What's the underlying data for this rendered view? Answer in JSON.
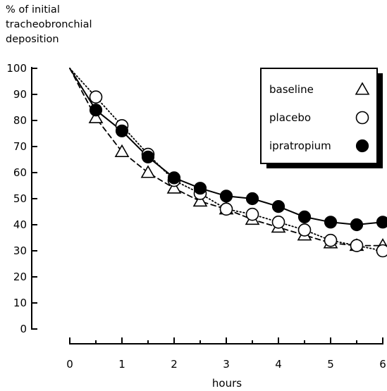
{
  "chart_data": {
    "type": "line",
    "title": "",
    "ylabel": "% of initial\ntracheobronchial\ndeposition",
    "xlabel": "hours",
    "xlim": [
      0,
      6
    ],
    "ylim": [
      0,
      100
    ],
    "xticks": [
      "0",
      "1",
      "2",
      "3",
      "4",
      "5",
      "6"
    ],
    "yticks": [
      "0",
      "10",
      "20",
      "30",
      "40",
      "50",
      "60",
      "70",
      "80",
      "90",
      "100"
    ],
    "grid": false,
    "legend_position": "top-right",
    "series": [
      {
        "name": "baseline",
        "marker": "open-triangle",
        "line_style": "dashed",
        "x": [
          0,
          0.5,
          1,
          1.5,
          2,
          2.5,
          3,
          3.5,
          4,
          4.5,
          5,
          5.5,
          6
        ],
        "y": [
          100,
          81,
          68,
          60,
          54,
          49,
          46,
          42,
          39,
          36,
          33,
          32,
          32
        ]
      },
      {
        "name": "placebo",
        "marker": "open-circle",
        "line_style": "dotted",
        "x": [
          0,
          0.5,
          1,
          1.5,
          2,
          2.5,
          3,
          3.5,
          4,
          4.5,
          5,
          5.5,
          6
        ],
        "y": [
          100,
          89,
          78,
          67,
          57,
          52,
          46,
          44,
          41,
          38,
          34,
          32,
          30
        ]
      },
      {
        "name": "ipratropium",
        "marker": "filled-circle",
        "line_style": "solid",
        "x": [
          0,
          0.5,
          1,
          1.5,
          2,
          2.5,
          3,
          3.5,
          4,
          4.5,
          5,
          5.5,
          6
        ],
        "y": [
          100,
          84,
          76,
          66,
          58,
          54,
          51,
          50,
          47,
          43,
          41,
          40,
          41
        ]
      }
    ]
  }
}
